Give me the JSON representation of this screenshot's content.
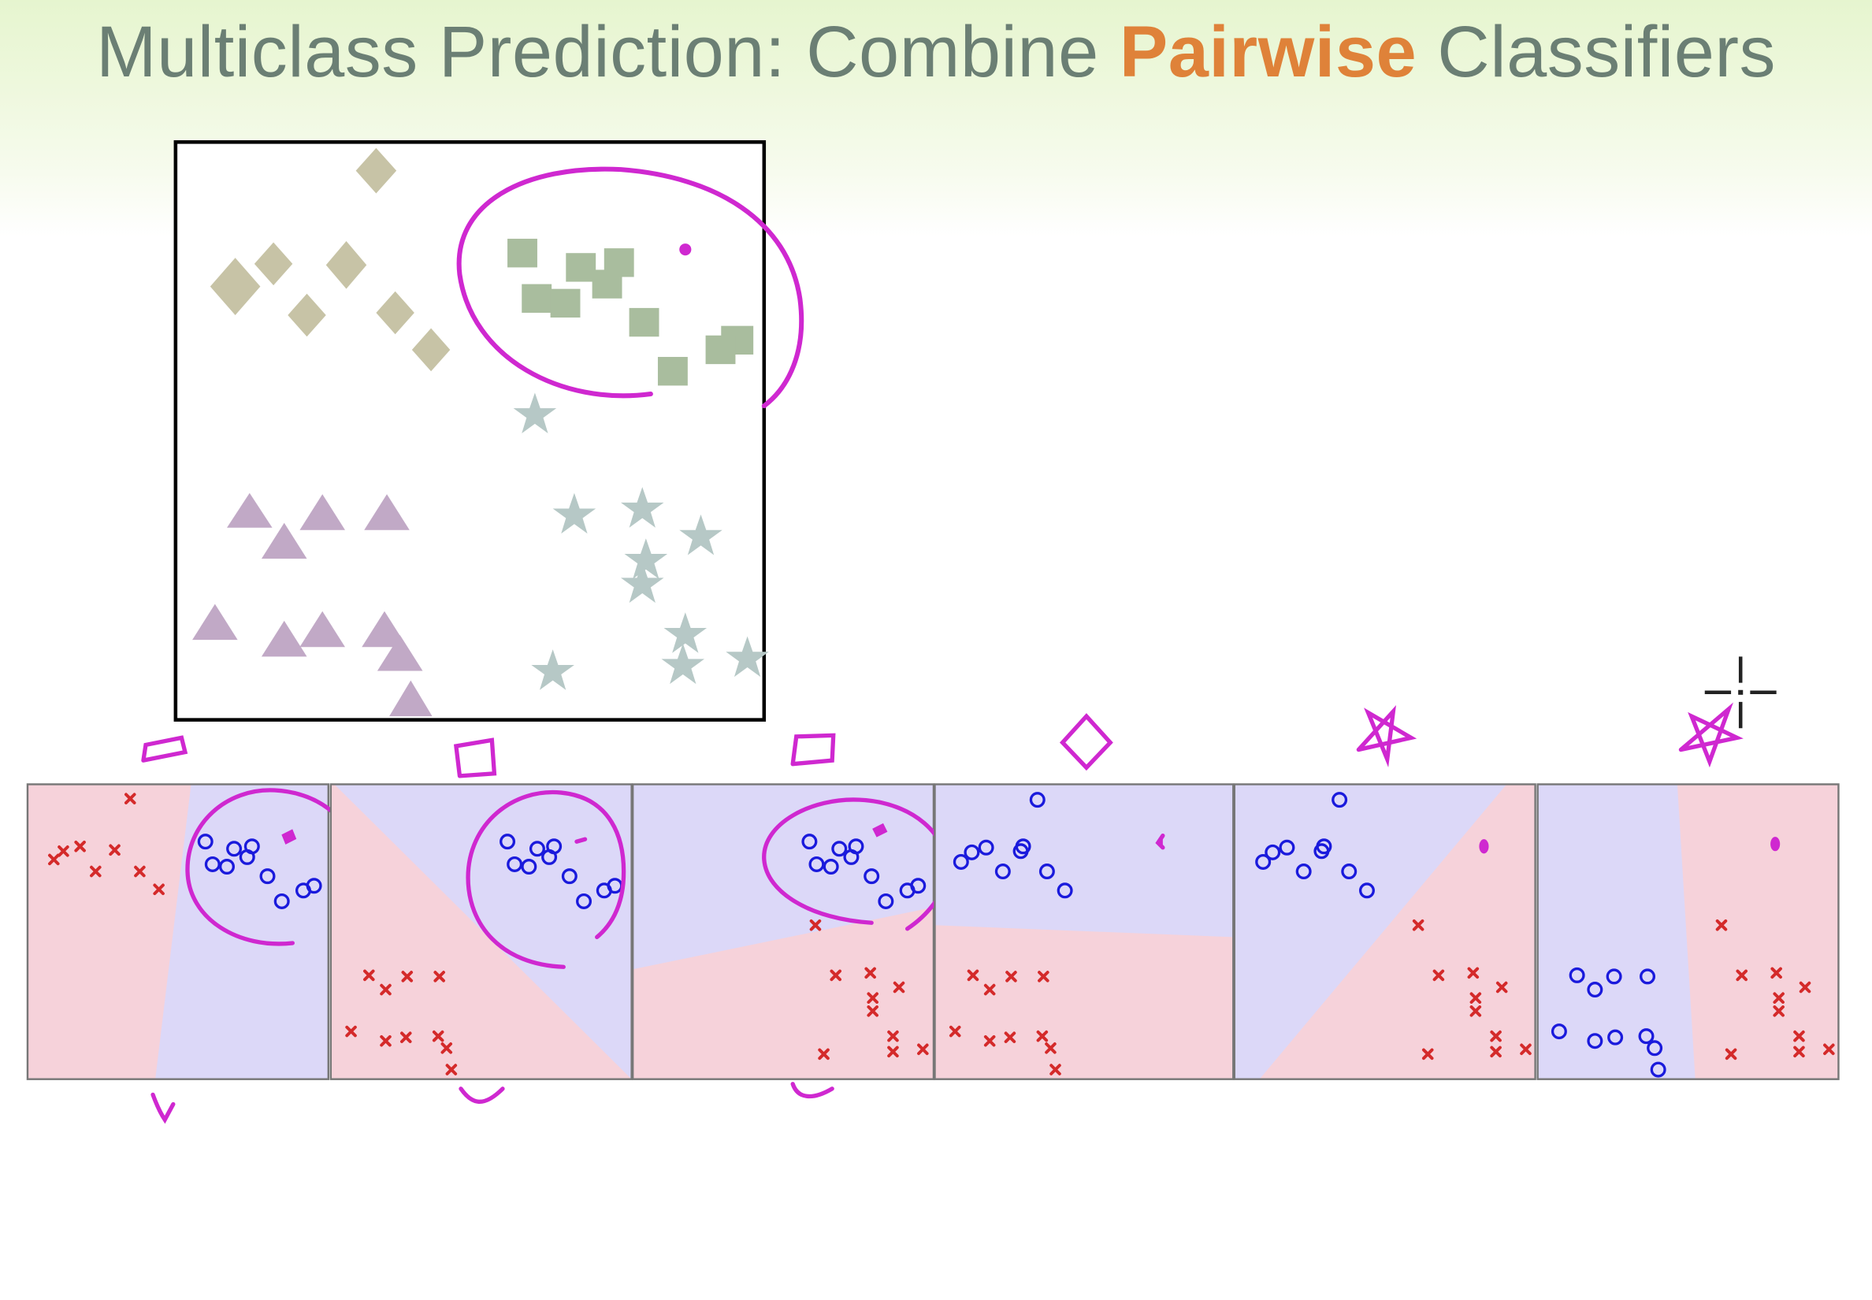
{
  "slide": {
    "title_pre": "Multiclass Prediction: Combine ",
    "title_accent": "Pairwise",
    "title_post": " Classifiers"
  },
  "colors": {
    "title_text": "#6b7f74",
    "title_accent": "#df8239",
    "diamond": "#c7c3a6",
    "square": "#a9bd9e",
    "triangle": "#c1a9c6",
    "star": "#b6c8c6",
    "region_pink": "#f6d2da",
    "region_blue": "#dcd8f8",
    "x_marker": "#d42a2a",
    "o_marker": "#1a1adc",
    "annotation": "#cf28d0"
  },
  "icons": [
    "diamond-icon",
    "square-icon",
    "triangle-icon",
    "star-icon",
    "x-marker-icon",
    "circle-marker-icon",
    "crosshair-cursor-icon"
  ],
  "panel_count": 6
}
